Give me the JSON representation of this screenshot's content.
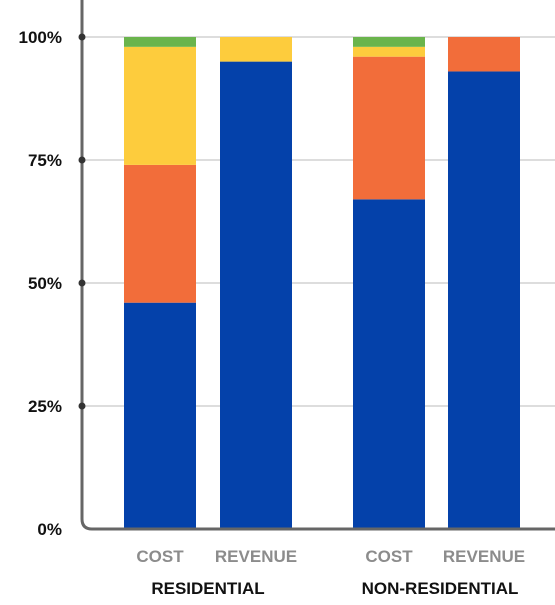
{
  "chart_data": {
    "type": "bar",
    "stacked": true,
    "normalized": true,
    "ylim": [
      0,
      100
    ],
    "yticks": [
      0,
      25,
      50,
      75,
      100
    ],
    "ytick_labels": [
      "0%",
      "25%",
      "50%",
      "75%",
      "100%"
    ],
    "grid": true,
    "title": "",
    "xlabel": "",
    "ylabel": "",
    "groups": [
      {
        "label": "RESIDENTIAL",
        "categories": [
          "COST",
          "REVENUE"
        ]
      },
      {
        "label": "NON-RESIDENTIAL",
        "categories": [
          "COST",
          "REVENUE"
        ]
      }
    ],
    "categories": [
      "COST",
      "REVENUE",
      "COST",
      "REVENUE"
    ],
    "series": [
      {
        "color": "#0441aa",
        "values": [
          46,
          95,
          67,
          93
        ]
      },
      {
        "color": "#f26d3a",
        "values": [
          28,
          0,
          29,
          7
        ]
      },
      {
        "color": "#fdcc3d",
        "values": [
          24,
          5,
          2,
          0
        ]
      },
      {
        "color": "#6ab44c",
        "values": [
          2,
          0,
          2,
          0
        ]
      }
    ]
  },
  "colors": {
    "axis": "#666666",
    "grid": "#bbbbbb",
    "category_text": "#8c8c8c",
    "label_text": "#111111"
  }
}
